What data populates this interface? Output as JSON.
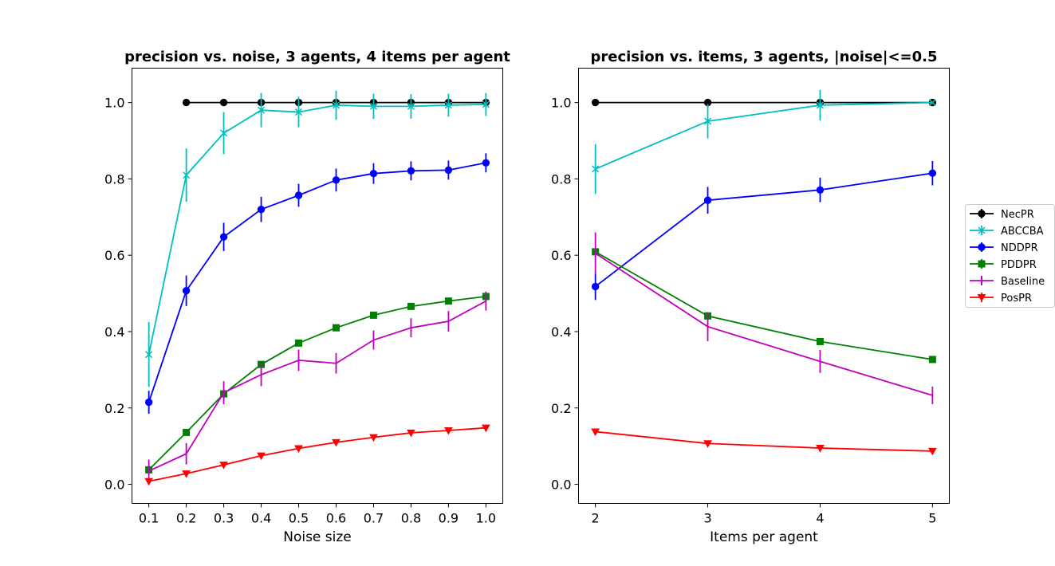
{
  "chart_data": [
    {
      "type": "line",
      "title": "precision vs. noise, 3 agents, 4 items per agent",
      "xlabel": "Noise size",
      "ylabel": "",
      "x": [
        0.1,
        0.2,
        0.3,
        0.4,
        0.5,
        0.6,
        0.7,
        0.8,
        0.9,
        1.0
      ],
      "x_ticks": [
        "0.1",
        "0.2",
        "0.3",
        "0.4",
        "0.5",
        "0.6",
        "0.7",
        "0.8",
        "0.9",
        "1.0"
      ],
      "xlim": [
        0.055,
        1.045
      ],
      "y_ticks": [
        "0.0",
        "0.2",
        "0.4",
        "0.6",
        "0.8",
        "1.0"
      ],
      "ylim": [
        -0.05,
        1.09
      ],
      "grid": false,
      "series": [
        {
          "name": "NecPR",
          "color": "#000000",
          "marker": "circle",
          "values": [
            null,
            1.0,
            1.0,
            1.0,
            1.0,
            1.0,
            1.0,
            1.0,
            1.0,
            1.0
          ],
          "errors": [
            null,
            0,
            0,
            0,
            0,
            0,
            0,
            0,
            0,
            0
          ]
        },
        {
          "name": "ABCCBA",
          "color": "#00bfbf",
          "marker": "x",
          "values": [
            0.34,
            0.81,
            0.92,
            0.98,
            0.975,
            0.993,
            0.99,
            0.99,
            0.993,
            0.995
          ],
          "errors": [
            0.085,
            0.07,
            0.055,
            0.045,
            0.04,
            0.038,
            0.033,
            0.032,
            0.03,
            0.03
          ]
        },
        {
          "name": "NDDPR",
          "color": "#0000ff",
          "marker": "circle",
          "values": [
            0.215,
            0.507,
            0.648,
            0.72,
            0.757,
            0.797,
            0.814,
            0.821,
            0.823,
            0.842
          ],
          "errors": [
            0.03,
            0.04,
            0.037,
            0.033,
            0.03,
            0.03,
            0.027,
            0.025,
            0.025,
            0.025
          ]
        },
        {
          "name": "PDDPR",
          "color": "#008000",
          "marker": "square",
          "values": [
            0.038,
            0.136,
            0.237,
            0.314,
            0.37,
            0.41,
            0.443,
            0.466,
            0.48,
            0.492
          ],
          "errors": [
            0.005,
            0.006,
            0.006,
            0.006,
            0.006,
            0.006,
            0.005,
            0.005,
            0.005,
            0.005
          ]
        },
        {
          "name": "Baseline",
          "color": "#bf00bf",
          "marker": "vline",
          "values": [
            0.035,
            0.08,
            0.24,
            0.287,
            0.325,
            0.317,
            0.378,
            0.41,
            0.427,
            0.48
          ],
          "errors": [
            0.03,
            0.028,
            0.03,
            0.03,
            0.028,
            0.027,
            0.025,
            0.025,
            0.027,
            0.025
          ]
        },
        {
          "name": "PosPR",
          "color": "#ff0000",
          "marker": "triangle-down",
          "values": [
            0.008,
            0.028,
            0.051,
            0.075,
            0.094,
            0.11,
            0.123,
            0.135,
            0.141,
            0.148
          ],
          "errors": [
            0.003,
            0.003,
            0.003,
            0.003,
            0.003,
            0.003,
            0.003,
            0.003,
            0.003,
            0.003
          ]
        }
      ]
    },
    {
      "type": "line",
      "title": "precision vs. items, 3 agents, |noise|<=0.5",
      "xlabel": "Items per agent",
      "ylabel": "",
      "x": [
        2,
        3,
        4,
        5
      ],
      "x_ticks": [
        "2",
        "3",
        "4",
        "5"
      ],
      "xlim": [
        1.85,
        5.15
      ],
      "y_ticks": [
        "0.0",
        "0.2",
        "0.4",
        "0.6",
        "0.8",
        "1.0"
      ],
      "ylim": [
        -0.05,
        1.09
      ],
      "grid": false,
      "series": [
        {
          "name": "NecPR",
          "color": "#000000",
          "marker": "circle",
          "values": [
            1.0,
            1.0,
            1.0,
            1.0
          ],
          "errors": [
            0,
            0,
            0,
            0
          ]
        },
        {
          "name": "ABCCBA",
          "color": "#00bfbf",
          "marker": "x",
          "values": [
            0.826,
            0.951,
            0.993,
            1.0
          ],
          "errors": [
            0.065,
            0.045,
            0.04,
            0.003
          ]
        },
        {
          "name": "NDDPR",
          "color": "#0000ff",
          "marker": "circle",
          "values": [
            0.518,
            0.744,
            0.771,
            0.815
          ],
          "errors": [
            0.035,
            0.035,
            0.032,
            0.032
          ]
        },
        {
          "name": "PDDPR",
          "color": "#008000",
          "marker": "square",
          "values": [
            0.609,
            0.441,
            0.374,
            0.327
          ],
          "errors": [
            0.006,
            0.006,
            0.006,
            0.006
          ]
        },
        {
          "name": "Baseline",
          "color": "#bf00bf",
          "marker": "vline",
          "values": [
            0.605,
            0.413,
            0.322,
            0.233
          ],
          "errors": [
            0.055,
            0.038,
            0.03,
            0.023
          ]
        },
        {
          "name": "PosPR",
          "color": "#ff0000",
          "marker": "triangle-down",
          "values": [
            0.138,
            0.107,
            0.095,
            0.087
          ],
          "errors": [
            0.003,
            0.003,
            0.003,
            0.003
          ]
        }
      ]
    }
  ],
  "legend": {
    "placement": "center-right",
    "entries": [
      "NecPR",
      "ABCCBA",
      "NDDPR",
      "PDDPR",
      "Baseline",
      "PosPR"
    ]
  }
}
